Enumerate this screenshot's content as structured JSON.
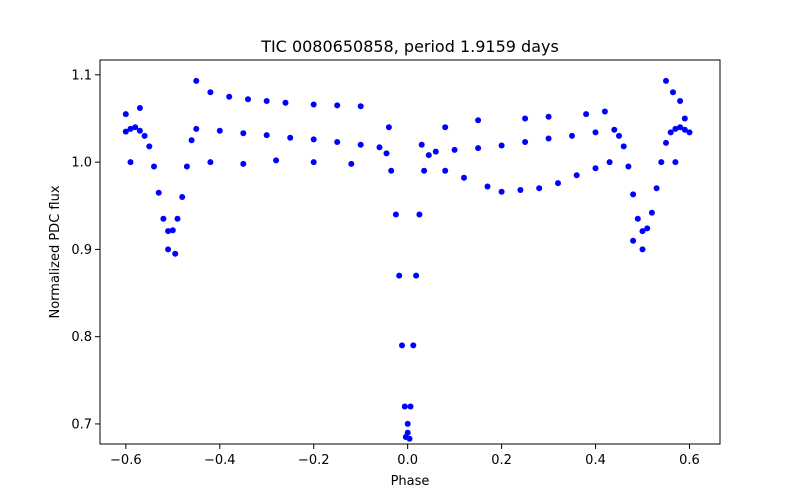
{
  "chart_data": {
    "type": "scatter",
    "title": "TIC 0080650858, period 1.9159 days",
    "xlabel": "Phase",
    "ylabel": "Normalized PDC flux",
    "xlim": [
      -0.655,
      0.665
    ],
    "ylim": [
      0.677,
      1.117
    ],
    "grid": false,
    "marker_color": "#0000ff",
    "x_ticks": [
      -0.6,
      -0.4,
      -0.2,
      0.0,
      0.2,
      0.4,
      0.6
    ],
    "x_tick_labels": [
      "−0.6",
      "−0.4",
      "−0.2",
      "0.0",
      "0.2",
      "0.4",
      "0.6"
    ],
    "y_ticks": [
      0.7,
      0.8,
      0.9,
      1.0,
      1.1
    ],
    "y_tick_labels": [
      "0.7",
      "0.8",
      "0.9",
      "1.0",
      "1.1"
    ],
    "series": [
      {
        "values": [
          [
            -0.6,
            1.035
          ],
          [
            -0.59,
            1.038
          ],
          [
            -0.58,
            1.04
          ],
          [
            -0.57,
            1.036
          ],
          [
            -0.56,
            1.03
          ],
          [
            -0.55,
            1.018
          ],
          [
            -0.54,
            0.995
          ],
          [
            -0.53,
            0.965
          ],
          [
            -0.52,
            0.935
          ],
          [
            -0.51,
            0.921
          ],
          [
            -0.5,
            0.922
          ],
          [
            -0.49,
            0.935
          ],
          [
            -0.48,
            0.96
          ],
          [
            -0.47,
            0.995
          ],
          [
            -0.46,
            1.025
          ],
          [
            -0.45,
            1.038
          ],
          [
            -0.4,
            1.036
          ],
          [
            -0.35,
            1.033
          ],
          [
            -0.3,
            1.031
          ],
          [
            -0.25,
            1.028
          ],
          [
            -0.2,
            1.026
          ],
          [
            -0.15,
            1.023
          ],
          [
            -0.1,
            1.02
          ],
          [
            -0.06,
            1.017
          ],
          [
            -0.045,
            1.01
          ],
          [
            -0.035,
            0.99
          ],
          [
            -0.025,
            0.94
          ],
          [
            -0.018,
            0.87
          ],
          [
            -0.012,
            0.79
          ],
          [
            -0.006,
            0.72
          ],
          [
            0.0,
            0.7
          ],
          [
            0.006,
            0.72
          ],
          [
            0.012,
            0.79
          ],
          [
            0.018,
            0.87
          ],
          [
            0.025,
            0.94
          ],
          [
            0.035,
            0.99
          ],
          [
            0.045,
            1.008
          ],
          [
            0.06,
            1.012
          ],
          [
            0.1,
            1.014
          ],
          [
            0.15,
            1.016
          ],
          [
            0.2,
            1.019
          ],
          [
            0.25,
            1.023
          ],
          [
            0.3,
            1.027
          ],
          [
            0.35,
            1.03
          ],
          [
            0.4,
            1.034
          ],
          [
            0.44,
            1.037
          ],
          [
            0.45,
            1.03
          ],
          [
            0.46,
            1.018
          ],
          [
            0.47,
            0.995
          ],
          [
            0.48,
            0.963
          ],
          [
            0.49,
            0.935
          ],
          [
            0.5,
            0.921
          ],
          [
            0.51,
            0.924
          ],
          [
            0.52,
            0.942
          ],
          [
            0.53,
            0.97
          ],
          [
            0.54,
            1.0
          ],
          [
            0.55,
            1.022
          ],
          [
            0.56,
            1.034
          ],
          [
            0.57,
            1.038
          ],
          [
            0.58,
            1.04
          ],
          [
            0.59,
            1.037
          ],
          [
            0.6,
            1.034
          ],
          [
            -0.6,
            1.055
          ],
          [
            -0.57,
            1.062
          ],
          [
            -0.59,
            1.0
          ],
          [
            -0.51,
            0.9
          ],
          [
            -0.495,
            0.895
          ],
          [
            -0.45,
            1.093
          ],
          [
            -0.42,
            1.08
          ],
          [
            -0.38,
            1.075
          ],
          [
            -0.34,
            1.072
          ],
          [
            -0.3,
            1.07
          ],
          [
            -0.26,
            1.068
          ],
          [
            -0.2,
            1.066
          ],
          [
            -0.15,
            1.065
          ],
          [
            -0.1,
            1.064
          ],
          [
            -0.42,
            1.0
          ],
          [
            -0.35,
            0.998
          ],
          [
            -0.28,
            1.002
          ],
          [
            -0.2,
            1.0
          ],
          [
            -0.12,
            0.998
          ],
          [
            -0.04,
            1.04
          ],
          [
            0.03,
            1.02
          ],
          [
            0.08,
            1.04
          ],
          [
            0.15,
            1.048
          ],
          [
            0.25,
            1.05
          ],
          [
            0.3,
            1.052
          ],
          [
            0.38,
            1.055
          ],
          [
            0.42,
            1.058
          ],
          [
            0.08,
            0.99
          ],
          [
            0.12,
            0.982
          ],
          [
            0.17,
            0.972
          ],
          [
            0.2,
            0.966
          ],
          [
            0.24,
            0.968
          ],
          [
            0.28,
            0.97
          ],
          [
            0.32,
            0.976
          ],
          [
            0.36,
            0.985
          ],
          [
            0.4,
            0.993
          ],
          [
            0.43,
            1.0
          ],
          [
            0.5,
            0.9
          ],
          [
            0.48,
            0.91
          ],
          [
            0.55,
            1.093
          ],
          [
            0.565,
            1.08
          ],
          [
            0.58,
            1.07
          ],
          [
            0.59,
            1.05
          ],
          [
            0.57,
            1.0
          ],
          [
            -0.004,
            0.685
          ],
          [
            0.004,
            0.683
          ],
          [
            0.0,
            0.69
          ]
        ]
      }
    ]
  }
}
